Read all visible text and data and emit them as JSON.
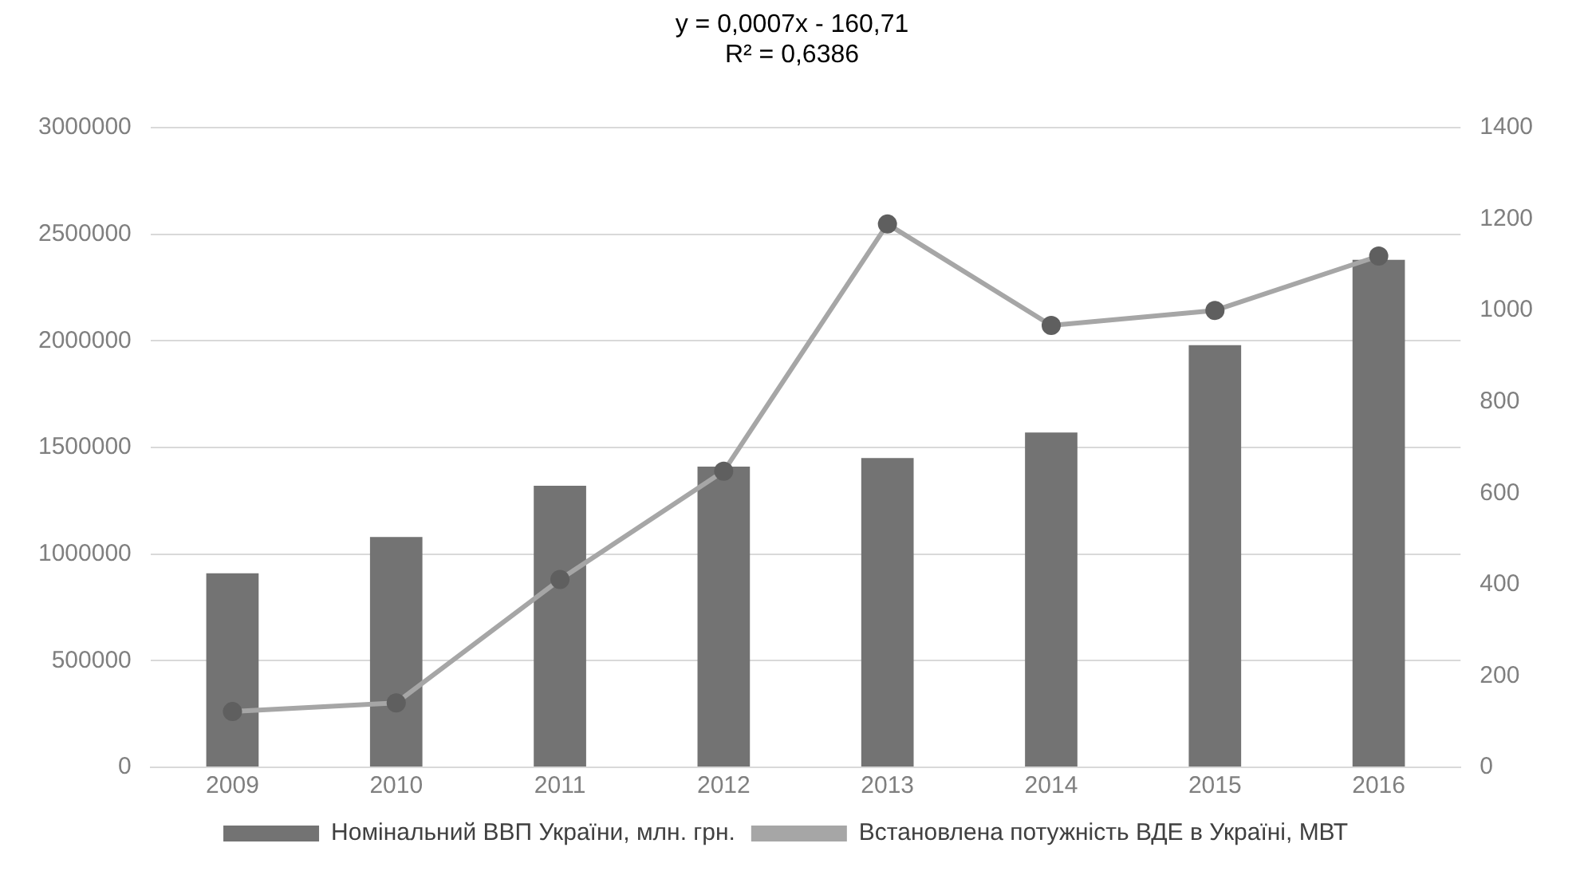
{
  "chart_data": {
    "type": "bar",
    "annotations": [
      "y = 0,0007x - 160,71",
      "R² = 0,6386"
    ],
    "categories": [
      "2009",
      "2010",
      "2011",
      "2012",
      "2013",
      "2014",
      "2015",
      "2016"
    ],
    "series": [
      {
        "name": "Номінальний ВВП України, млн. грн.",
        "color": "#737373",
        "values": [
          910000,
          1080000,
          1320000,
          1410000,
          1450000,
          1570000,
          1980000,
          2380000
        ]
      },
      {
        "name": "Встановлена потужність ВДЕ в Україні, МВТ",
        "type": "line",
        "axis": "y2",
        "color": "#a6a6a6",
        "values": [
          122,
          141,
          411,
          648,
          1189,
          967,
          1000,
          1119
        ]
      }
    ],
    "ylim": [
      0,
      3000000
    ],
    "yticks": [
      0,
      500000,
      1000000,
      1500000,
      2000000,
      2500000,
      3000000
    ],
    "y2lim": [
      0,
      1400
    ],
    "y2ticks": [
      0,
      200,
      400,
      600,
      800,
      1000,
      1200,
      1400
    ],
    "grid": "y",
    "legend": "bottom",
    "marker": "circle"
  }
}
